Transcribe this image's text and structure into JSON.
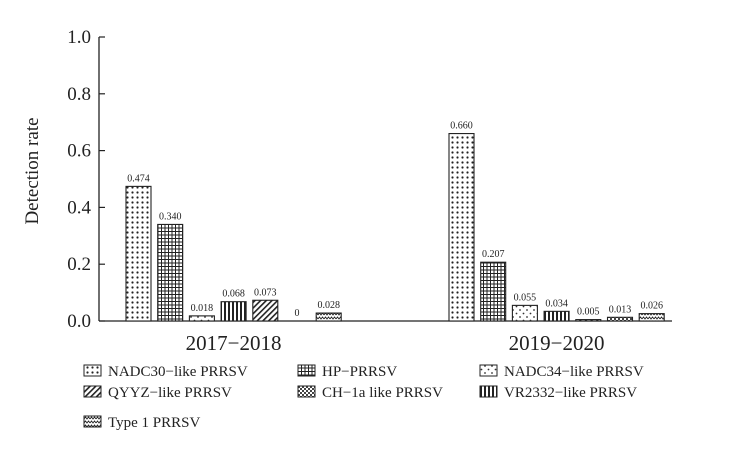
{
  "chart_data": {
    "type": "bar",
    "categories": [
      "2017−2018",
      "2019−2020"
    ],
    "ylabel": "Detection rate",
    "ylim": [
      0,
      1.0
    ],
    "yticks": [
      "0.0",
      "0.2",
      "0.4",
      "0.6",
      "0.8",
      "1.0"
    ],
    "grid": false,
    "legend_position": "bottom",
    "series": [
      {
        "name": "NADC30−like PRRSV",
        "pattern": "dots",
        "values": [
          0.474,
          0.66
        ],
        "labels": [
          "0.474",
          "0.660"
        ]
      },
      {
        "name": "HP−PRRSV",
        "pattern": "grid",
        "values": [
          0.34,
          0.207
        ],
        "labels": [
          "0.340",
          "0.207"
        ]
      },
      {
        "name": "NADC34−like PRRSV",
        "pattern": "sparse-dots",
        "values": [
          0.018,
          0.055
        ],
        "labels": [
          "0.018",
          "0.055"
        ]
      },
      {
        "name": "VR2332−like PRRSV",
        "pattern": "vertical",
        "values": [
          0.068,
          0.034
        ],
        "labels": [
          "0.068",
          "0.034"
        ]
      },
      {
        "name": "QYYZ−like PRRSV",
        "pattern": "diagonal",
        "values": [
          0.073,
          0.005
        ],
        "labels": [
          "0.073",
          "0.005"
        ]
      },
      {
        "name": "CH−1a like PRRSV",
        "pattern": "checker",
        "values": [
          0,
          0.013
        ],
        "labels": [
          "0",
          "0.013"
        ]
      },
      {
        "name": "Type 1 PRRSV",
        "pattern": "zigzag",
        "values": [
          0.028,
          0.026
        ],
        "labels": [
          "0.028",
          "0.026"
        ]
      }
    ],
    "legend_order": [
      0,
      1,
      2,
      4,
      5,
      3,
      6
    ]
  }
}
